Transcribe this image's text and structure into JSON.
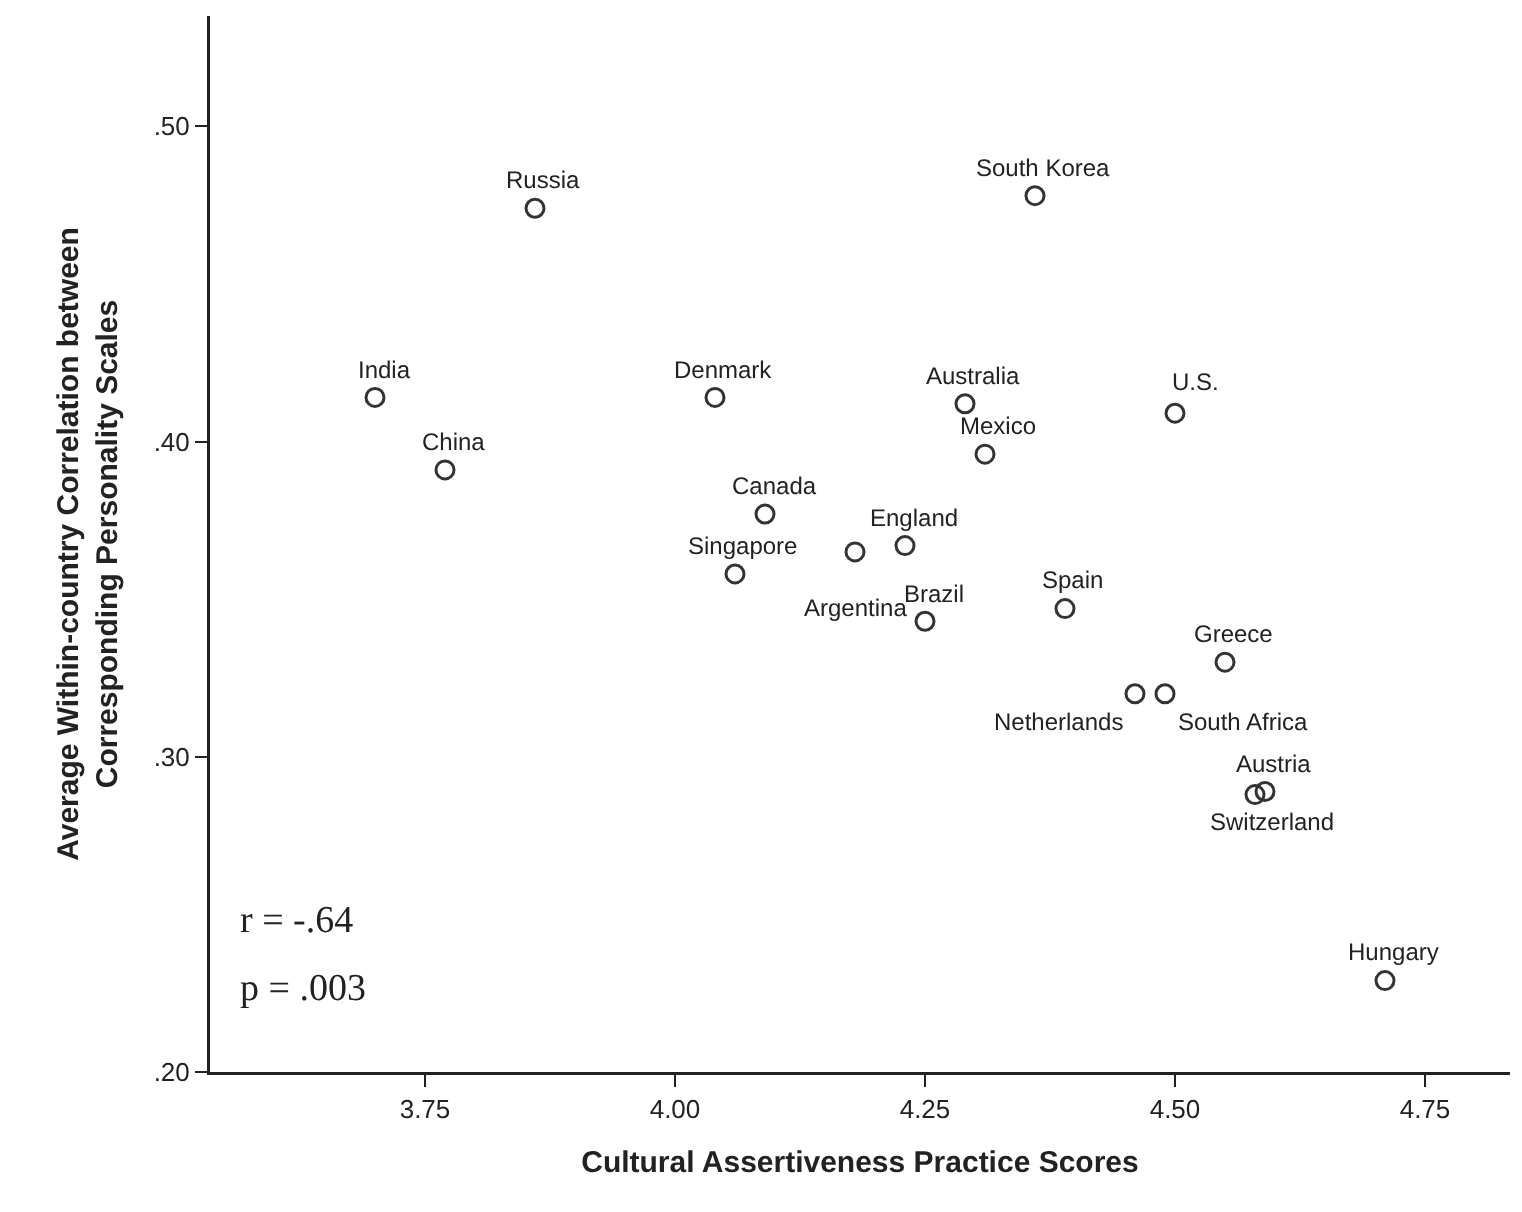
{
  "chart_data": {
    "type": "scatter",
    "xlabel": "Cultural Assertiveness Practice Scores",
    "ylabel": "Average Within-country Correlation between\nCorresponding Personality Scales",
    "x": [
      3.86,
      4.36,
      3.7,
      4.04,
      3.77,
      4.29,
      4.31,
      4.5,
      4.09,
      4.06,
      4.18,
      4.25,
      4.23,
      4.39,
      4.55,
      4.46,
      4.49,
      4.59,
      4.58,
      4.71
    ],
    "series": [
      {
        "color": "#333333",
        "values": [
          0.474,
          0.478,
          0.414,
          0.414,
          0.391,
          0.412,
          0.396,
          0.409,
          0.377,
          0.358,
          0.365,
          0.343,
          0.367,
          0.347,
          0.33,
          0.32,
          0.32,
          0.289,
          0.288,
          0.229
        ]
      }
    ],
    "annotations": [
      {
        "text": "Russia",
        "x": 3.86,
        "y": 0.474
      },
      {
        "text": "South Korea",
        "x": 4.36,
        "y": 0.478
      },
      {
        "text": "India",
        "x": 3.7,
        "y": 0.414
      },
      {
        "text": "Denmark",
        "x": 4.04,
        "y": 0.414
      },
      {
        "text": "China",
        "x": 3.77,
        "y": 0.391
      },
      {
        "text": "Australia",
        "x": 4.29,
        "y": 0.412
      },
      {
        "text": "Mexico",
        "x": 4.31,
        "y": 0.396
      },
      {
        "text": "U.S.",
        "x": 4.5,
        "y": 0.409
      },
      {
        "text": "Canada",
        "x": 4.09,
        "y": 0.377
      },
      {
        "text": "Singapore",
        "x": 4.06,
        "y": 0.358
      },
      {
        "text": "Argentina",
        "x": 4.18,
        "y": 0.365
      },
      {
        "text": "Brazil",
        "x": 4.25,
        "y": 0.343
      },
      {
        "text": "England",
        "x": 4.23,
        "y": 0.367
      },
      {
        "text": "Spain",
        "x": 4.39,
        "y": 0.347
      },
      {
        "text": "Greece",
        "x": 4.55,
        "y": 0.33
      },
      {
        "text": "Netherlands",
        "x": 4.46,
        "y": 0.32
      },
      {
        "text": "South Africa",
        "x": 4.49,
        "y": 0.32
      },
      {
        "text": "Austria",
        "x": 4.59,
        "y": 0.289
      },
      {
        "text": "Switzerland",
        "x": 4.58,
        "y": 0.288
      },
      {
        "text": "Hungary",
        "x": 4.71,
        "y": 0.229
      },
      "r = -.64",
      "p = .003"
    ],
    "xlim": [
      3.535,
      4.835
    ],
    "xticks": [
      3.75,
      {
        "value": 4,
        "label": "4.00"
      },
      {
        "value": 4.25,
        "label": "4.25"
      },
      {
        "value": 4.5,
        "label": "4.50"
      },
      {
        "value": 4.75,
        "label": "4.75"
      }
    ],
    "ylim": [
      0.2,
      0.535
    ],
    "yticks": [
      {
        "value": 0.2,
        "label": ".20"
      },
      {
        "value": 0.3,
        "label": ".30"
      },
      {
        "value": 0.4,
        "label": ".40"
      },
      {
        "value": 0.5,
        "label": ".50"
      }
    ],
    "grid": false,
    "marker": "circle"
  }
}
